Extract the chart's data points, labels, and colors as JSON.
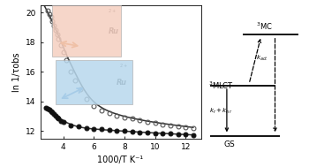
{
  "xlabel": "1000/T K⁻¹",
  "ylabel": "ln 1/τobs",
  "xlim": [
    2.5,
    13.0
  ],
  "ylim": [
    11.5,
    20.5
  ],
  "yticks": [
    12,
    14,
    16,
    18,
    20
  ],
  "xticks": [
    4,
    6,
    8,
    10,
    12
  ],
  "open_circles_x": [
    3.0,
    3.1,
    3.2,
    3.3,
    3.4,
    3.5,
    3.6,
    3.7,
    3.85,
    4.0,
    4.2,
    4.5,
    4.8,
    5.1,
    5.5,
    6.0,
    6.5,
    7.0,
    7.5,
    8.0,
    8.5,
    9.0,
    9.5,
    10.0,
    10.5,
    11.0,
    11.5,
    12.0,
    12.5
  ],
  "open_circles_y": [
    20.1,
    19.9,
    19.7,
    19.4,
    19.1,
    18.8,
    18.5,
    18.2,
    17.8,
    17.3,
    16.8,
    16.0,
    15.4,
    14.8,
    14.2,
    13.7,
    13.4,
    13.2,
    13.05,
    12.95,
    12.85,
    12.75,
    12.65,
    12.55,
    12.45,
    12.38,
    12.32,
    12.25,
    12.18
  ],
  "filled_circles_x": [
    2.9,
    3.0,
    3.1,
    3.2,
    3.3,
    3.4,
    3.5,
    3.6,
    3.7,
    3.85,
    4.0,
    4.5,
    5.0,
    5.5,
    6.0,
    6.5,
    7.0,
    7.5,
    8.0,
    8.5,
    9.0,
    9.5,
    10.0,
    10.5,
    11.0,
    11.5,
    12.0,
    12.5
  ],
  "filled_circles_y": [
    13.55,
    13.5,
    13.45,
    13.35,
    13.25,
    13.15,
    13.05,
    12.95,
    12.85,
    12.7,
    12.6,
    12.4,
    12.3,
    12.22,
    12.16,
    12.12,
    12.08,
    12.04,
    12.0,
    11.96,
    11.93,
    11.9,
    11.87,
    11.84,
    11.82,
    11.8,
    11.78,
    11.75
  ],
  "fit_open_x": [
    2.8,
    3.0,
    3.2,
    3.5,
    3.8,
    4.2,
    4.7,
    5.2,
    5.8,
    6.5,
    7.5,
    8.5,
    9.5,
    10.5,
    11.5,
    12.5
  ],
  "fit_open_y": [
    20.4,
    20.0,
    19.6,
    18.9,
    18.2,
    17.2,
    16.1,
    15.1,
    14.2,
    13.6,
    13.15,
    12.88,
    12.68,
    12.52,
    12.38,
    12.25
  ],
  "fit_filled_x": [
    2.8,
    3.2,
    3.6,
    4.2,
    5.0,
    6.0,
    7.0,
    8.5,
    10.0,
    11.5,
    12.5
  ],
  "fit_filled_y": [
    13.6,
    13.35,
    13.0,
    12.6,
    12.3,
    12.15,
    12.07,
    11.97,
    11.88,
    11.8,
    11.75
  ],
  "open_color": "#555555",
  "filled_color": "#111111",
  "fit_color": "#333333",
  "fit_linewidth": 1.1,
  "marker_size": 3.5,
  "marker_lw": 0.8,
  "pink_color": "#f5cfc0",
  "light_blue_color": "#b8d8ed",
  "orange_color": "#d4701a",
  "blue_arrow_color": "#4488cc"
}
